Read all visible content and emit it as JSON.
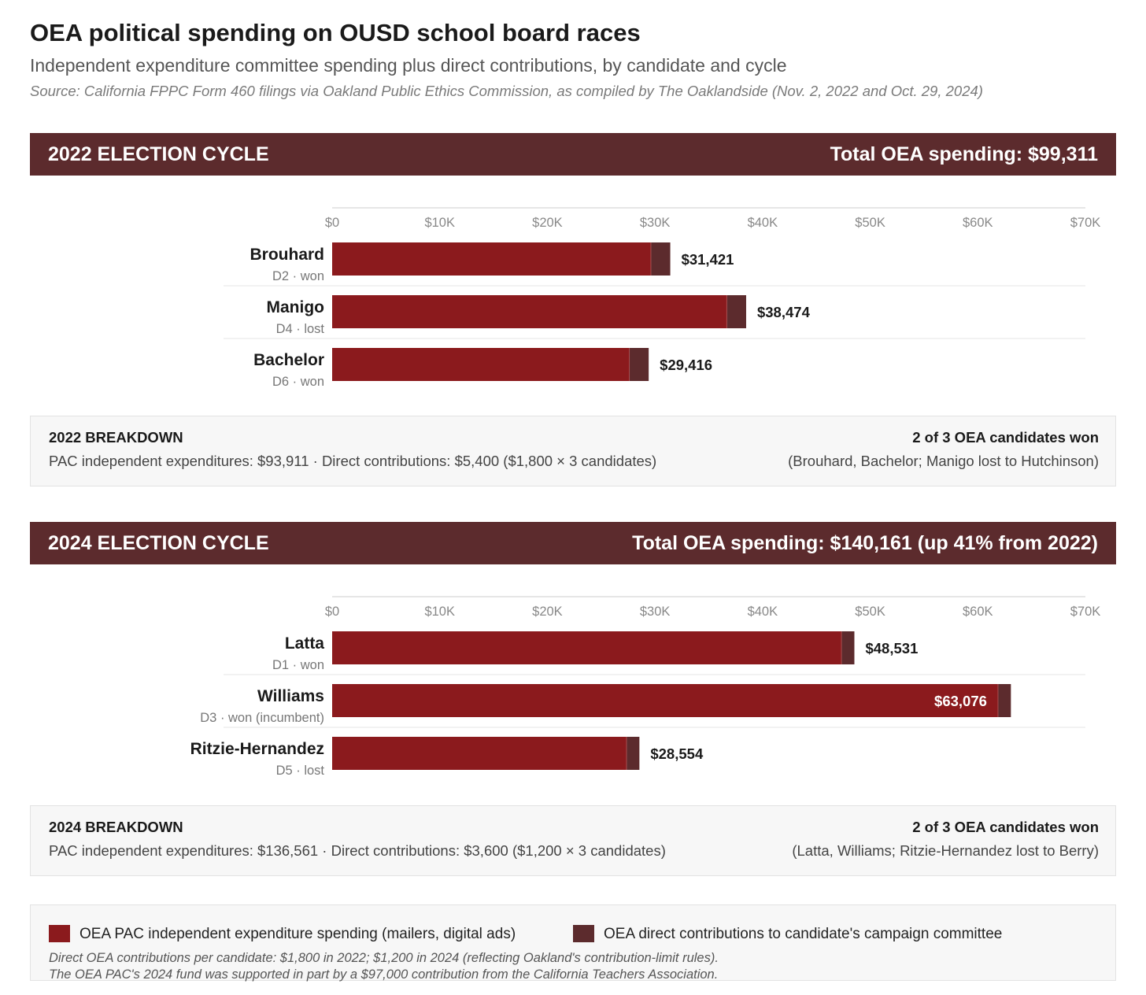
{
  "header": {
    "title": "OEA political spending on OUSD school board races",
    "subtitle": "Independent expenditure committee spending plus direct contributions, by candidate and cycle",
    "source": "Source: California FPPC Form 460 filings via Oakland Public Ethics Commission, as compiled by The Oaklandside (Nov. 2, 2022 and Oct. 29, 2024)"
  },
  "colors": {
    "pac": "#8b1a1d",
    "direct": "#5c2b2d",
    "header_bg": "#5c2b2d",
    "tick_text": "#888888"
  },
  "cycles": [
    {
      "heading": "2022 ELECTION CYCLE",
      "total_label": "Total OEA spending: $99,311",
      "breakdown_title": "2022 BREAKDOWN",
      "breakdown_detail": "PAC independent expenditures: $93,911 · Direct contributions: $5,400 ($1,800 × 3 candidates)",
      "result_title": "2 of 3 OEA candidates won",
      "result_detail": "(Brouhard, Bachelor; Manigo lost to Hutchinson)"
    },
    {
      "heading": "2024 ELECTION CYCLE",
      "total_label": "Total OEA spending: $140,161 (up 41% from 2022)",
      "breakdown_title": "2024 BREAKDOWN",
      "breakdown_detail": "PAC independent expenditures: $136,561 · Direct contributions: $3,600 ($1,200 × 3 candidates)",
      "result_title": "2 of 3 OEA candidates won",
      "result_detail": "(Latta, Williams; Ritzie-Hernandez lost to Berry)"
    }
  ],
  "chart_data": [
    {
      "type": "bar",
      "orientation": "horizontal",
      "stacked": true,
      "xlim": [
        0,
        70000
      ],
      "tick_values": [
        0,
        10000,
        20000,
        30000,
        40000,
        50000,
        60000,
        70000
      ],
      "tick_labels": [
        "$0",
        "$10K",
        "$20K",
        "$30K",
        "$40K",
        "$50K",
        "$60K",
        "$70K"
      ],
      "categories": [
        "Brouhard",
        "Manigo",
        "Bachelor"
      ],
      "sublabels": [
        "D2 · won",
        "D4 · lost",
        "D6 · won"
      ],
      "series": [
        {
          "name": "OEA PAC independent expenditure spending (mailers, digital ads)",
          "values": [
            29621,
            36674,
            27616
          ]
        },
        {
          "name": "OEA direct contributions to candidate's campaign committee",
          "values": [
            1800,
            1800,
            1800
          ]
        }
      ],
      "total_labels": [
        "$31,421",
        "$38,474",
        "$29,416"
      ]
    },
    {
      "type": "bar",
      "orientation": "horizontal",
      "stacked": true,
      "xlim": [
        0,
        70000
      ],
      "tick_values": [
        0,
        10000,
        20000,
        30000,
        40000,
        50000,
        60000,
        70000
      ],
      "tick_labels": [
        "$0",
        "$10K",
        "$20K",
        "$30K",
        "$40K",
        "$50K",
        "$60K",
        "$70K"
      ],
      "categories": [
        "Latta",
        "Williams",
        "Ritzie-Hernandez"
      ],
      "sublabels": [
        "D1 · won",
        "D3 · won (incumbent)",
        "D5 · lost"
      ],
      "series": [
        {
          "name": "OEA PAC independent expenditure spending (mailers, digital ads)",
          "values": [
            47331,
            61876,
            27354
          ]
        },
        {
          "name": "OEA direct contributions to candidate's campaign committee",
          "values": [
            1200,
            1200,
            1200
          ]
        }
      ],
      "total_labels": [
        "$48,531",
        "$63,076",
        "$28,554"
      ]
    }
  ],
  "legend": {
    "pac_label": "OEA PAC independent expenditure spending (mailers, digital ads)",
    "direct_label": "OEA direct contributions to candidate's campaign committee",
    "note1": "Direct OEA contributions per candidate: $1,800 in 2022; $1,200 in 2024 (reflecting Oakland's contribution-limit rules).",
    "note2": "The OEA PAC's 2024 fund was supported in part by a $97,000 contribution from the California Teachers Association."
  }
}
